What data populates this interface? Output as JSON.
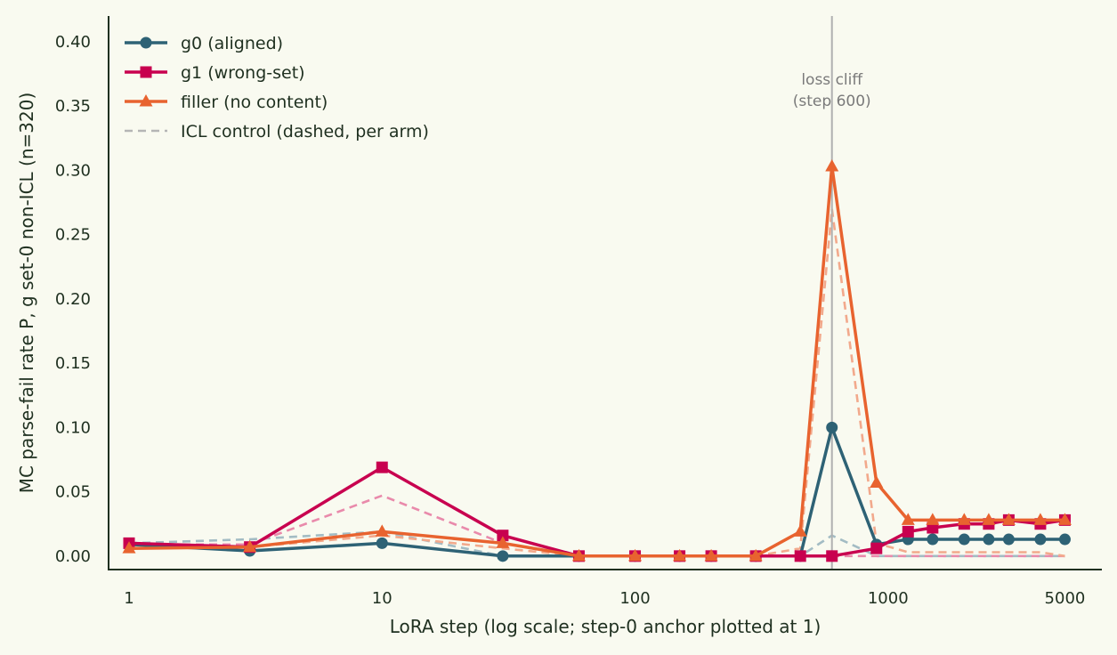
{
  "colors": {
    "background": "#f9faf0",
    "axis": "#1f3020",
    "g0": "#2e6275",
    "g1": "#c8004f",
    "filler": "#e8632f",
    "icl_legend": "#b5b5b5",
    "cliff_line": "#b0b0b0"
  },
  "chart_data": {
    "type": "line",
    "xlabel": "LoRA step (log scale; step-0 anchor plotted at 1)",
    "ylabel": "MC parse-fail rate P, g set-0 non-ICL (n=320)",
    "xscale": "log",
    "xlim": [
      0.83,
      7000
    ],
    "ylim": [
      -0.0105,
      0.42
    ],
    "xticks": [
      {
        "value": 1,
        "label": "1"
      },
      {
        "value": 10,
        "label": "10"
      },
      {
        "value": 100,
        "label": "100"
      },
      {
        "value": 1000,
        "label": "1000"
      },
      {
        "value": 5000,
        "label": "5000"
      }
    ],
    "yticks": [
      {
        "value": 0.0,
        "label": "0.00"
      },
      {
        "value": 0.05,
        "label": "0.05"
      },
      {
        "value": 0.1,
        "label": "0.10"
      },
      {
        "value": 0.15,
        "label": "0.15"
      },
      {
        "value": 0.2,
        "label": "0.20"
      },
      {
        "value": 0.25,
        "label": "0.25"
      },
      {
        "value": 0.3,
        "label": "0.30"
      },
      {
        "value": 0.35,
        "label": "0.35"
      },
      {
        "value": 0.4,
        "label": "0.40"
      }
    ],
    "grid": false,
    "legend_position": "top-left",
    "annotations": [
      {
        "x": 600,
        "text_line1": "loss cliff",
        "text_line2": "(step 600)"
      }
    ],
    "series": [
      {
        "key": "g0",
        "name": "g0 (aligned)",
        "marker": "circle",
        "x": [
          1,
          3,
          10,
          30,
          60,
          100,
          150,
          200,
          300,
          450,
          600,
          900,
          1200,
          1500,
          2000,
          2500,
          3000,
          4000,
          5000
        ],
        "y": [
          0.009,
          0.004,
          0.01,
          0.0,
          0.0,
          0.0,
          0.0,
          0.0,
          0.0,
          0.0,
          0.1,
          0.009,
          0.013,
          0.013,
          0.013,
          0.013,
          0.013,
          0.013,
          0.013
        ],
        "icl_y": [
          0.01,
          0.013,
          0.019,
          0.0,
          0.0,
          0.0,
          0.0,
          0.0,
          0.0,
          0.0,
          0.016,
          0.0,
          0.0,
          0.0,
          0.0,
          0.0,
          0.0,
          0.0,
          0.0
        ]
      },
      {
        "key": "g1",
        "name": "g1 (wrong-set)",
        "marker": "square",
        "x": [
          1,
          3,
          10,
          30,
          60,
          100,
          150,
          200,
          300,
          450,
          600,
          900,
          1200,
          1500,
          2000,
          2500,
          3000,
          4000,
          5000
        ],
        "y": [
          0.01,
          0.007,
          0.069,
          0.016,
          0.0,
          0.0,
          0.0,
          0.0,
          0.0,
          0.0,
          0.0,
          0.006,
          0.019,
          0.022,
          0.025,
          0.025,
          0.028,
          0.025,
          0.028
        ],
        "icl_y": [
          0.009,
          0.009,
          0.047,
          0.01,
          0.0,
          0.0,
          0.0,
          0.0,
          0.0,
          0.0,
          0.0,
          0.0,
          0.0,
          0.0,
          0.0,
          0.0,
          0.0,
          0.0,
          0.0
        ]
      },
      {
        "key": "filler",
        "name": "filler (no content)",
        "marker": "triangle",
        "x": [
          1,
          3,
          10,
          30,
          60,
          100,
          150,
          200,
          300,
          450,
          600,
          900,
          1200,
          1500,
          2000,
          2500,
          3000,
          4000,
          5000
        ],
        "y": [
          0.006,
          0.007,
          0.019,
          0.01,
          0.0,
          0.0,
          0.0,
          0.0,
          0.0,
          0.019,
          0.303,
          0.057,
          0.028,
          0.028,
          0.028,
          0.028,
          0.028,
          0.028,
          0.028
        ],
        "icl_y": [
          0.006,
          0.007,
          0.016,
          0.006,
          0.0,
          0.0,
          0.0,
          0.0,
          0.0,
          0.006,
          0.27,
          0.01,
          0.003,
          0.003,
          0.003,
          0.003,
          0.003,
          0.003,
          0.0
        ]
      }
    ],
    "legend": [
      {
        "series": "g0",
        "label": "g0 (aligned)"
      },
      {
        "series": "g1",
        "label": "g1 (wrong-set)"
      },
      {
        "series": "filler",
        "label": "filler (no content)"
      },
      {
        "series": "icl",
        "label": "ICL control (dashed, per arm)"
      }
    ]
  }
}
